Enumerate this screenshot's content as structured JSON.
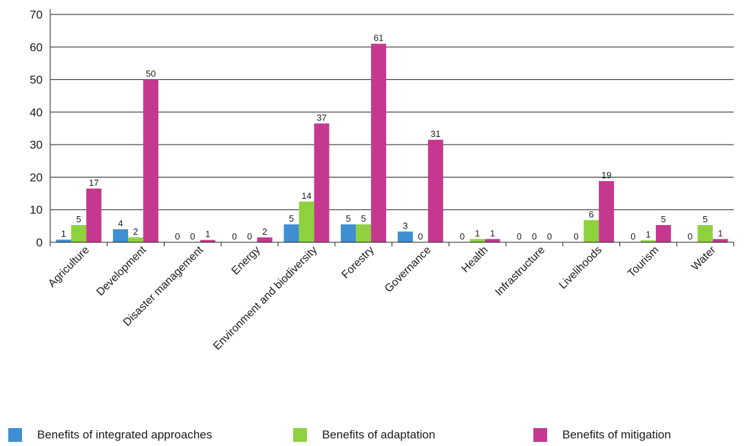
{
  "chart_data": {
    "type": "bar",
    "categories": [
      "Agriculture",
      "Development",
      "Disaster management",
      "Energy",
      "Environment and biodiversity",
      "Forestry",
      "Governance",
      "Health",
      "Infrastructure",
      "Livelihoods",
      "Tourism",
      "Water"
    ],
    "series": [
      {
        "name": "Benefits of integrated approaches",
        "color": "#3f8fd2",
        "values": [
          1,
          4,
          0,
          0,
          5,
          5,
          3,
          0,
          0,
          0,
          0,
          0
        ]
      },
      {
        "name": "Benefits of adaptation",
        "color": "#8fd13f",
        "values": [
          5,
          2,
          0,
          0,
          14,
          5,
          0,
          1,
          0,
          6,
          1,
          5
        ]
      },
      {
        "name": "Benefits of mitigation",
        "color": "#c4398f",
        "values": [
          17,
          50,
          1,
          2,
          37,
          61,
          31,
          1,
          0,
          19,
          5,
          1
        ]
      }
    ],
    "bar_heights_estimated": {
      "Benefits of integrated approaches": [
        0.8,
        4,
        0,
        0,
        5.5,
        5.5,
        3.3,
        0,
        0,
        0,
        0,
        0
      ],
      "Benefits of adaptation": [
        5.3,
        1.5,
        0,
        0,
        12.5,
        5.5,
        0,
        1,
        0,
        6.8,
        0.6,
        5.3
      ],
      "Benefits of mitigation": [
        16.5,
        50,
        0.7,
        1.5,
        36.5,
        61,
        31.5,
        1,
        0,
        18.8,
        5.3,
        1
      ]
    },
    "yticks": [
      "0",
      "10",
      "20",
      "30",
      "40",
      "50",
      "60",
      "70"
    ],
    "ylim": [
      0,
      70
    ],
    "grid": true,
    "legend": "bottom"
  }
}
